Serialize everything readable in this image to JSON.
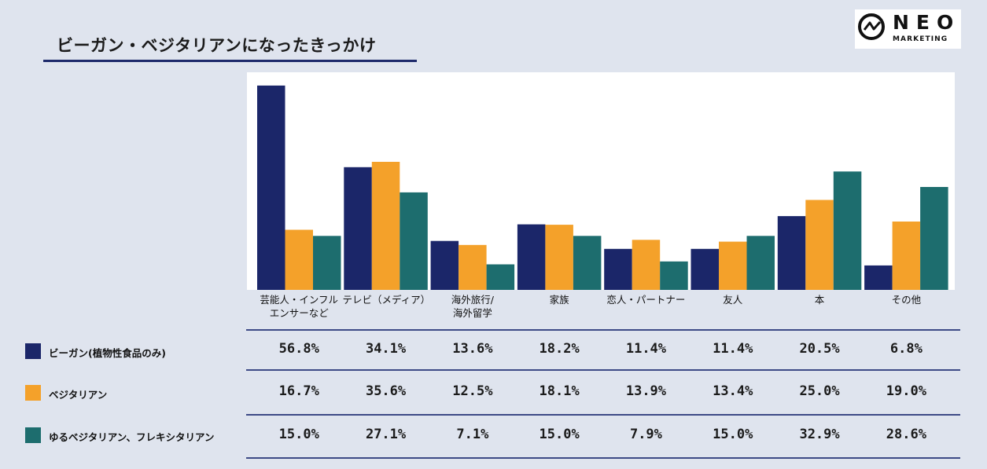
{
  "brand": {
    "logo_main": "NEO",
    "logo_sub": "MARKETING"
  },
  "colors": {
    "vegan": "#1b2669",
    "vegetarian": "#f4a12a",
    "flexi": "#1d6d6e",
    "rule": "#3d4a86"
  },
  "chart_data": {
    "type": "bar",
    "title": "ビーガン・ベジタリアンになったきっかけ",
    "categories": [
      "芸能人・インフル\nエンサーなど",
      "テレビ（メディア）",
      "海外旅行/\n海外留学",
      "家族",
      "恋人・パートナー",
      "友人",
      "本",
      "その他"
    ],
    "ylim": [
      0,
      60
    ],
    "series": [
      {
        "name": "ビーガン(植物性食品のみ)",
        "color": "#1b2669",
        "values": [
          56.8,
          34.1,
          13.6,
          18.2,
          11.4,
          11.4,
          20.5,
          6.8
        ],
        "labels": [
          "56.8%",
          "34.1%",
          "13.6%",
          "18.2%",
          "11.4%",
          "11.4%",
          "20.5%",
          "6.8%"
        ]
      },
      {
        "name": "ベジタリアン",
        "color": "#f4a12a",
        "values": [
          16.7,
          35.6,
          12.5,
          18.1,
          13.9,
          13.4,
          25.0,
          19.0
        ],
        "labels": [
          "16.7%",
          "35.6%",
          "12.5%",
          "18.1%",
          "13.9%",
          "13.4%",
          "25.0%",
          "19.0%"
        ]
      },
      {
        "name": "ゆるベジタリアン、フレキシタリアン",
        "color": "#1d6d6e",
        "values": [
          15.0,
          27.1,
          7.1,
          15.0,
          7.9,
          15.0,
          32.9,
          28.6
        ],
        "labels": [
          "15.0%",
          "27.1%",
          "7.1%",
          "15.0%",
          "7.9%",
          "15.0%",
          "32.9%",
          "28.6%"
        ]
      }
    ]
  }
}
